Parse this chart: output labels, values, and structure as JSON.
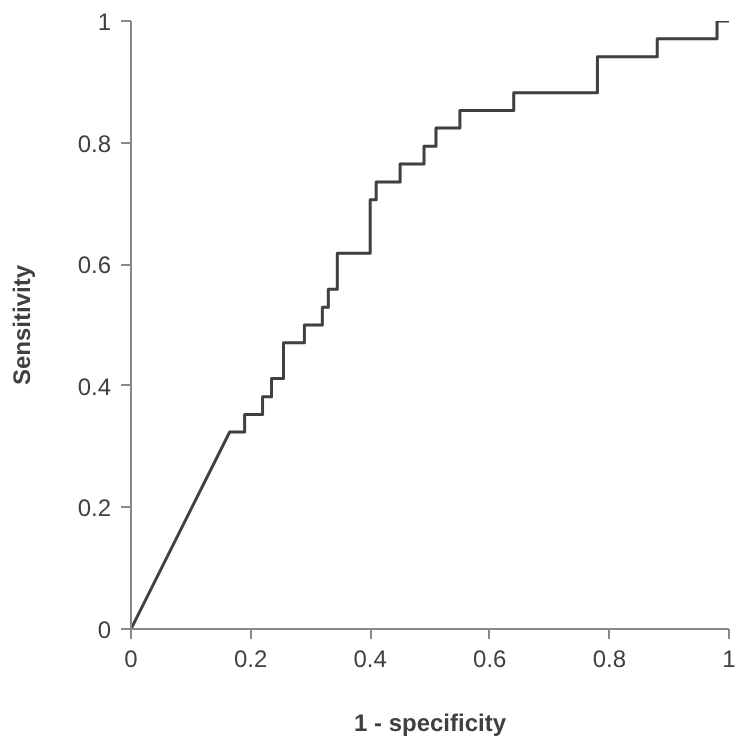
{
  "chart_data": {
    "type": "line",
    "xlabel": "1 - specificity",
    "ylabel": "Sensitivity",
    "xlim": [
      0,
      1
    ],
    "ylim": [
      0,
      1
    ],
    "xticks": [
      0,
      0.2,
      0.4,
      0.6,
      0.8,
      1
    ],
    "yticks": [
      0,
      0.2,
      0.4,
      0.6,
      0.8,
      1
    ],
    "grid": false,
    "marker": "none",
    "line_style": "solid",
    "x": [
      0,
      0.165,
      0.19,
      0.19,
      0.22,
      0.22,
      0.235,
      0.235,
      0.255,
      0.255,
      0.29,
      0.29,
      0.32,
      0.32,
      0.33,
      0.33,
      0.345,
      0.345,
      0.4,
      0.4,
      0.41,
      0.41,
      0.45,
      0.45,
      0.49,
      0.49,
      0.51,
      0.51,
      0.55,
      0.55,
      0.64,
      0.64,
      0.78,
      0.78,
      0.88,
      0.88,
      0.98,
      0.98,
      1
    ],
    "series": [
      {
        "color": "#404040",
        "values": [
          0,
          0.324,
          0.324,
          0.353,
          0.353,
          0.382,
          0.382,
          0.412,
          0.412,
          0.471,
          0.471,
          0.5,
          0.5,
          0.529,
          0.529,
          0.559,
          0.559,
          0.618,
          0.618,
          0.706,
          0.706,
          0.735,
          0.735,
          0.765,
          0.765,
          0.794,
          0.794,
          0.824,
          0.824,
          0.853,
          0.853,
          0.882,
          0.882,
          0.941,
          0.941,
          0.971,
          0.971,
          1,
          1
        ]
      }
    ]
  }
}
